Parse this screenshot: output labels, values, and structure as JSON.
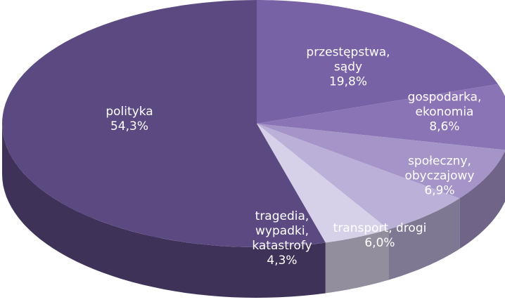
{
  "chart_data": {
    "type": "pie3d",
    "categories": [
      "przestępstwa, sądy",
      "gospodarka, ekonomia",
      "społeczny, obyczajowy",
      "transport, drogi",
      "tragedia, wypadki, katastrofy",
      "polityka"
    ],
    "values": [
      19.8,
      8.6,
      6.9,
      6.0,
      4.3,
      54.3
    ],
    "value_labels": [
      "19,8%",
      "8,6%",
      "6,9%",
      "6,0%",
      "4,3%",
      "54,3%"
    ],
    "colors": [
      "#7862a6",
      "#8a74b6",
      "#a494c8",
      "#bab0d8",
      "#d6d1e8",
      "#5b4a82"
    ]
  }
}
